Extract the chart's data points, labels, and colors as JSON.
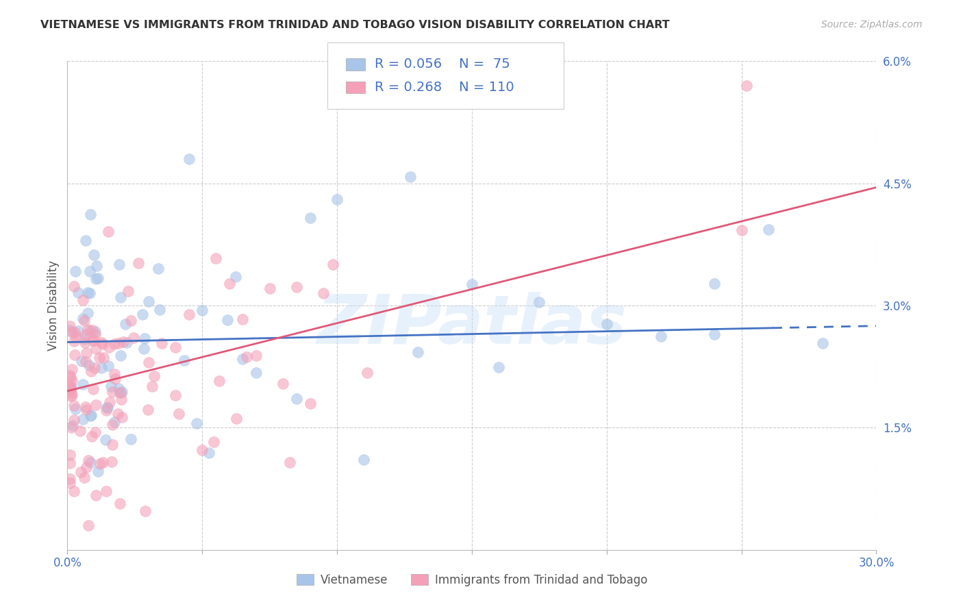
{
  "title": "VIETNAMESE VS IMMIGRANTS FROM TRINIDAD AND TOBAGO VISION DISABILITY CORRELATION CHART",
  "source": "Source: ZipAtlas.com",
  "ylabel": "Vision Disability",
  "xlim": [
    0.0,
    0.3
  ],
  "ylim": [
    0.0,
    0.06
  ],
  "xtick_positions": [
    0.0,
    0.05,
    0.1,
    0.15,
    0.2,
    0.25,
    0.3
  ],
  "ytick_positions": [
    0.0,
    0.015,
    0.03,
    0.045,
    0.06
  ],
  "ytick_labels": [
    "",
    "1.5%",
    "3.0%",
    "4.5%",
    "6.0%"
  ],
  "xtick_labels": [
    "0.0%",
    "",
    "",
    "",
    "",
    "",
    "30.0%"
  ],
  "blue_scatter_color": "#A8C4E8",
  "pink_scatter_color": "#F4A0B8",
  "blue_line_color": "#4472C4",
  "pink_line_color": "#E05878",
  "tick_label_color": "#4472C4",
  "legend_text_color": "#4472C4",
  "R_blue": 0.056,
  "N_blue": 75,
  "R_pink": 0.268,
  "N_pink": 110,
  "watermark": "ZIPatlas",
  "background_color": "#FFFFFF",
  "grid_color": "#CCCCCC",
  "blue_trend_y0": 0.0255,
  "blue_trend_y1": 0.0275,
  "pink_trend_y0": 0.0195,
  "pink_trend_y1": 0.0445
}
